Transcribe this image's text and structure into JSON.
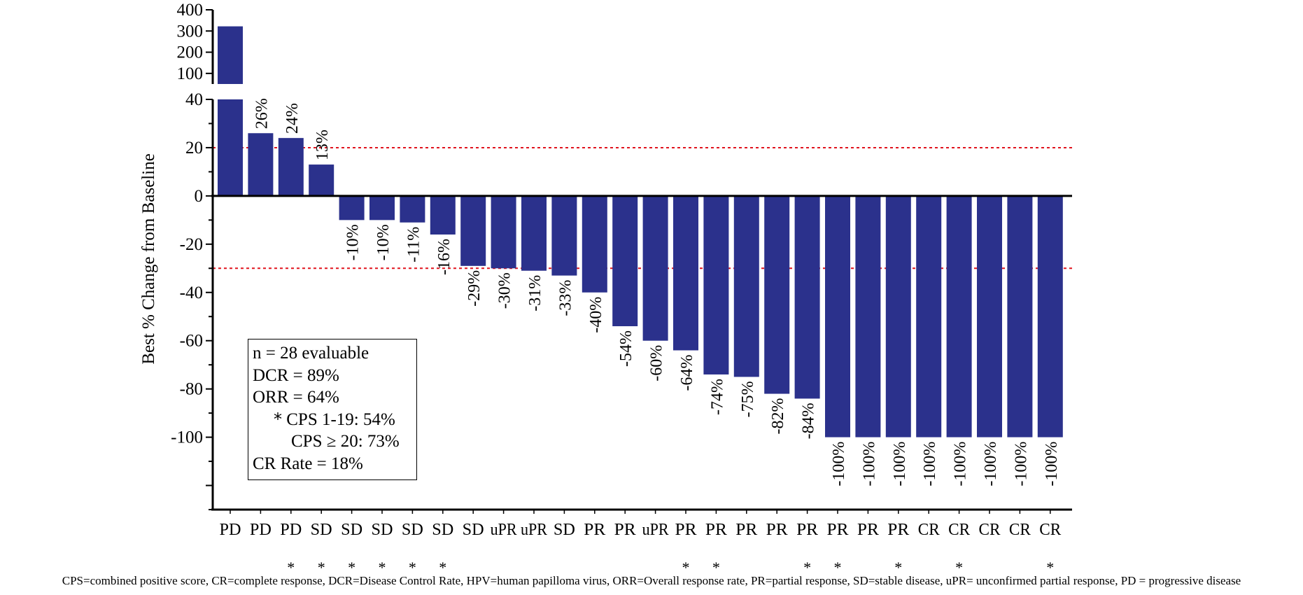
{
  "chart_data": {
    "type": "bar",
    "ylabel": "Best % Change from Baseline",
    "values": [
      322,
      26,
      24,
      13,
      -10,
      -10,
      -11,
      -16,
      -29,
      -30,
      -31,
      -33,
      -40,
      -54,
      -60,
      -64,
      -74,
      -75,
      -82,
      -84,
      -100,
      -100,
      -100,
      -100,
      -100,
      -100,
      -100,
      -100
    ],
    "bar_labels": [
      "",
      "26%",
      "24%",
      "13%",
      "-10%",
      "-10%",
      "-11%",
      "-16%",
      "-29%",
      "-30%",
      "-31%",
      "-33%",
      "-40%",
      "-54%",
      "-60%",
      "-64%",
      "-74%",
      "-75%",
      "-82%",
      "-84%",
      "-100%",
      "-100%",
      "-100%",
      "-100%",
      "-100%",
      "-100%",
      "-100%",
      "-100%"
    ],
    "categories": [
      "PD",
      "PD",
      "PD",
      "SD",
      "SD",
      "SD",
      "SD",
      "SD",
      "SD",
      "uPR",
      "uPR",
      "SD",
      "PR",
      "PR",
      "uPR",
      "PR",
      "PR",
      "PR",
      "PR",
      "PR",
      "PR",
      "PR",
      "PR",
      "CR",
      "CR",
      "CR",
      "CR",
      "CR"
    ],
    "asterisks": [
      false,
      false,
      true,
      true,
      true,
      true,
      true,
      true,
      false,
      false,
      false,
      false,
      false,
      false,
      false,
      true,
      true,
      false,
      false,
      true,
      true,
      false,
      true,
      false,
      true,
      false,
      false,
      true
    ],
    "y_ticks_lower": [
      "-100",
      "-80",
      "-60",
      "-40",
      "-20",
      "0",
      "20",
      "40"
    ],
    "y_ticks_upper": [
      "100",
      "200",
      "300",
      "400"
    ],
    "ylim_lower": [
      -130,
      40
    ],
    "ylim_upper": [
      50,
      400
    ],
    "reference_lines": [
      20,
      -30
    ],
    "colors": {
      "bar": "#2B318C",
      "reference_line": "#E0141E"
    }
  },
  "legend": {
    "n": "n = 28 evaluable",
    "dcr": "DCR = 89%",
    "orr": "ORR = 64%",
    "cps1": "CPS 1-19: 54%",
    "cps2": "CPS ≥ 20: 73%",
    "cr_rate": "CR Rate = 18%"
  },
  "asterisk_symbol": "*",
  "footnote": "CPS=combined positive score, CR=complete response, DCR=Disease Control Rate, HPV=human papilloma virus, ORR=Overall response rate, PR=partial response, SD=stable disease, uPR= unconfirmed partial response, PD = progressive disease"
}
